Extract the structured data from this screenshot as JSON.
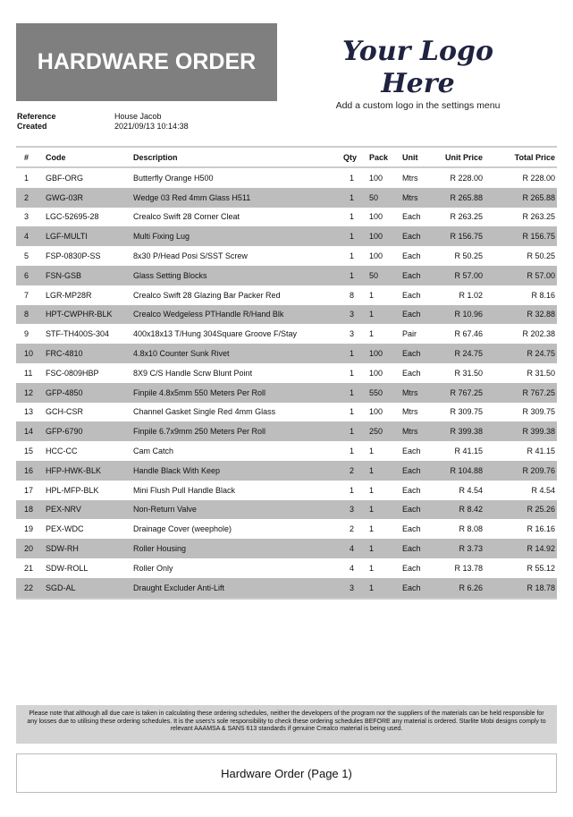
{
  "title": "HARDWARE ORDER",
  "logo": {
    "text": "Your Logo Here",
    "subtitle": "Add a custom logo in the settings menu"
  },
  "meta": {
    "reference_label": "Reference",
    "reference": "House Jacob",
    "created_label": "Created",
    "created": "2021/09/13 10:14:38"
  },
  "table": {
    "headers": [
      "#",
      "Code",
      "Description",
      "Qty",
      "Pack",
      "Unit",
      "Unit Price",
      "Total Price"
    ],
    "rows": [
      [
        "1",
        "GBF-ORG",
        "Butterfly Orange H500",
        "1",
        "100",
        "Mtrs",
        "R 228.00",
        "R 228.00"
      ],
      [
        "2",
        "GWG-03R",
        "Wedge 03 Red 4mm Glass H511",
        "1",
        "50",
        "Mtrs",
        "R 265.88",
        "R 265.88"
      ],
      [
        "3",
        "LGC-52695-28",
        "Crealco Swift 28 Corner Cleat",
        "1",
        "100",
        "Each",
        "R 263.25",
        "R 263.25"
      ],
      [
        "4",
        "LGF-MULTI",
        "Multi Fixing Lug",
        "1",
        "100",
        "Each",
        "R 156.75",
        "R 156.75"
      ],
      [
        "5",
        "FSP-0830P-SS",
        "8x30 P/Head Posi S/SST Screw",
        "1",
        "100",
        "Each",
        "R 50.25",
        "R 50.25"
      ],
      [
        "6",
        "FSN-GSB",
        "Glass Setting Blocks",
        "1",
        "50",
        "Each",
        "R 57.00",
        "R 57.00"
      ],
      [
        "7",
        "LGR-MP28R",
        "Crealco Swift 28 Glazing Bar Packer Red",
        "8",
        "1",
        "Each",
        "R 1.02",
        "R 8.16"
      ],
      [
        "8",
        "HPT-CWPHR-BLK",
        "Crealco Wedgeless PTHandle R/Hand Blk",
        "3",
        "1",
        "Each",
        "R 10.96",
        "R 32.88"
      ],
      [
        "9",
        "STF-TH400S-304",
        "400x18x13 T/Hung 304Square Groove F/Stay",
        "3",
        "1",
        "Pair",
        "R 67.46",
        "R 202.38"
      ],
      [
        "10",
        "FRC-4810",
        "4.8x10 Counter Sunk Rivet",
        "1",
        "100",
        "Each",
        "R 24.75",
        "R 24.75"
      ],
      [
        "11",
        "FSC-0809HBP",
        "8X9 C/S Handle Scrw Blunt Point",
        "1",
        "100",
        "Each",
        "R 31.50",
        "R 31.50"
      ],
      [
        "12",
        "GFP-4850",
        "Finpile 4.8x5mm 550 Meters Per Roll",
        "1",
        "550",
        "Mtrs",
        "R 767.25",
        "R 767.25"
      ],
      [
        "13",
        "GCH-CSR",
        "Channel Gasket Single Red 4mm Glass",
        "1",
        "100",
        "Mtrs",
        "R 309.75",
        "R 309.75"
      ],
      [
        "14",
        "GFP-6790",
        "Finpile 6.7x9mm 250 Meters Per Roll",
        "1",
        "250",
        "Mtrs",
        "R 399.38",
        "R 399.38"
      ],
      [
        "15",
        "HCC-CC",
        "Cam Catch",
        "1",
        "1",
        "Each",
        "R 41.15",
        "R 41.15"
      ],
      [
        "16",
        "HFP-HWK-BLK",
        "Handle Black With Keep",
        "2",
        "1",
        "Each",
        "R 104.88",
        "R 209.76"
      ],
      [
        "17",
        "HPL-MFP-BLK",
        "Mini Flush Pull Handle Black",
        "1",
        "1",
        "Each",
        "R 4.54",
        "R 4.54"
      ],
      [
        "18",
        "PEX-NRV",
        "Non-Return Valve",
        "3",
        "1",
        "Each",
        "R 8.42",
        "R 25.26"
      ],
      [
        "19",
        "PEX-WDC",
        "Drainage Cover (weephole)",
        "2",
        "1",
        "Each",
        "R 8.08",
        "R 16.16"
      ],
      [
        "20",
        "SDW-RH",
        "Roller Housing",
        "4",
        "1",
        "Each",
        "R 3.73",
        "R 14.92"
      ],
      [
        "21",
        "SDW-ROLL",
        "Roller Only",
        "4",
        "1",
        "Each",
        "R 13.78",
        "R 55.12"
      ],
      [
        "22",
        "SGD-AL",
        "Draught Excluder Anti-Lift",
        "3",
        "1",
        "Each",
        "R 6.26",
        "R 18.78"
      ]
    ]
  },
  "note": "Please note that although all due care is taken in calculating these ordering schedules, neither the developers of the program nor the suppliers of the materials can be held responsible for any losses due to utilising these ordering schedules. It is the users's sole responsibility to check these ordering schedules BEFORE any material is ordered. Starlite Mobi designs comply to relevant AAAMSA & SANS 613 standards if genuine Crealco material is being used.",
  "footer": {
    "page_label": "Hardware Order (Page 1)"
  }
}
